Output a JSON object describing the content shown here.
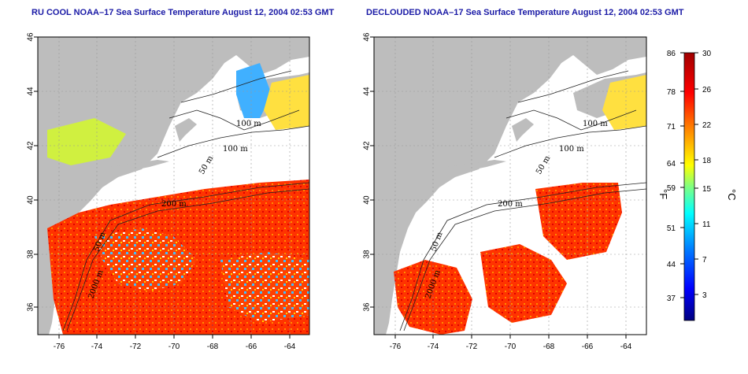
{
  "panels": [
    {
      "title": "RU COOL NOAA–17 Sea Surface Temperature August 12, 2004 02:53 GMT",
      "x_ticks": [
        "-76",
        "-74",
        "-72",
        "-70",
        "-68",
        "-66",
        "-64"
      ],
      "y_ticks": [
        "36",
        "38",
        "40",
        "42",
        "44",
        "46"
      ],
      "isobaths": [
        "100 m",
        "100 m",
        "50 m",
        "200 m",
        "50 m",
        "2000 m"
      ]
    },
    {
      "title": "DECLOUDED NOAA–17 Sea Surface Temperature August 12, 2004 02:53 GMT",
      "x_ticks": [
        "-76",
        "-74",
        "-72",
        "-70",
        "-68",
        "-66",
        "-64"
      ],
      "y_ticks": [
        "36",
        "38",
        "40",
        "42",
        "44",
        "46"
      ],
      "isobaths": [
        "100 m",
        "100 m",
        "50 m",
        "200 m",
        "50 m",
        "2000 m"
      ]
    }
  ],
  "colorbar": {
    "fahrenheit_ticks": [
      "86",
      "78",
      "71",
      "64",
      "59",
      "51",
      "44",
      "37"
    ],
    "celsius_ticks": [
      "30",
      "26",
      "22",
      "18",
      "15",
      "11",
      "7",
      "3"
    ],
    "fahrenheit_label": "°F",
    "celsius_label": "°C",
    "colors": [
      "#000080",
      "#0000ff",
      "#0080ff",
      "#00ffff",
      "#80ff80",
      "#ffff00",
      "#ff8000",
      "#ff0000",
      "#a00000"
    ]
  },
  "colors": {
    "land": "#bdbdbd",
    "title": "#1a1aa6"
  }
}
